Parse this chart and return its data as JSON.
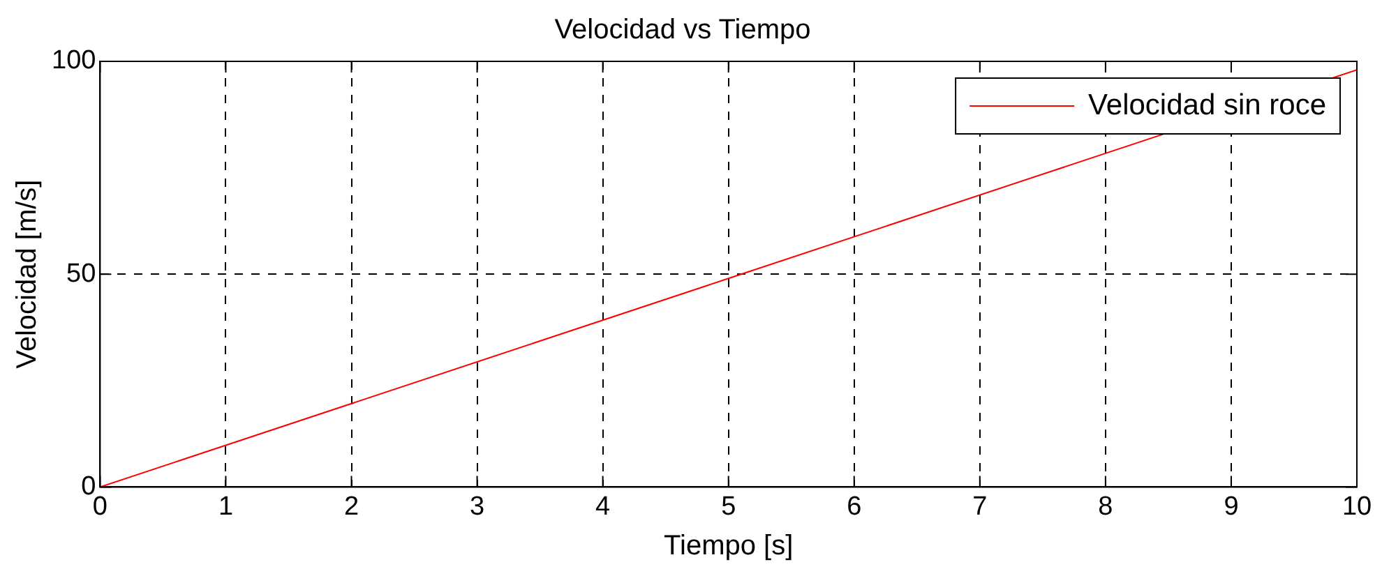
{
  "chart_data": {
    "type": "line",
    "title": "Velocidad vs Tiempo",
    "xlabel": "Tiempo [s]",
    "ylabel": "Velocidad [m/s]",
    "x": [
      0,
      5,
      10
    ],
    "series": [
      {
        "name": "Velocidad sin roce",
        "color": "#ff0000",
        "values": [
          0,
          49,
          98
        ]
      }
    ],
    "xlim": [
      0,
      10
    ],
    "xticks": [
      0,
      1,
      2,
      3,
      4,
      5,
      6,
      7,
      8,
      9,
      10
    ],
    "ylim": [
      0,
      100
    ],
    "yticks": [
      0,
      50,
      100
    ],
    "grid": true,
    "legend": "top right",
    "marker": "none",
    "line_style": "solid"
  }
}
